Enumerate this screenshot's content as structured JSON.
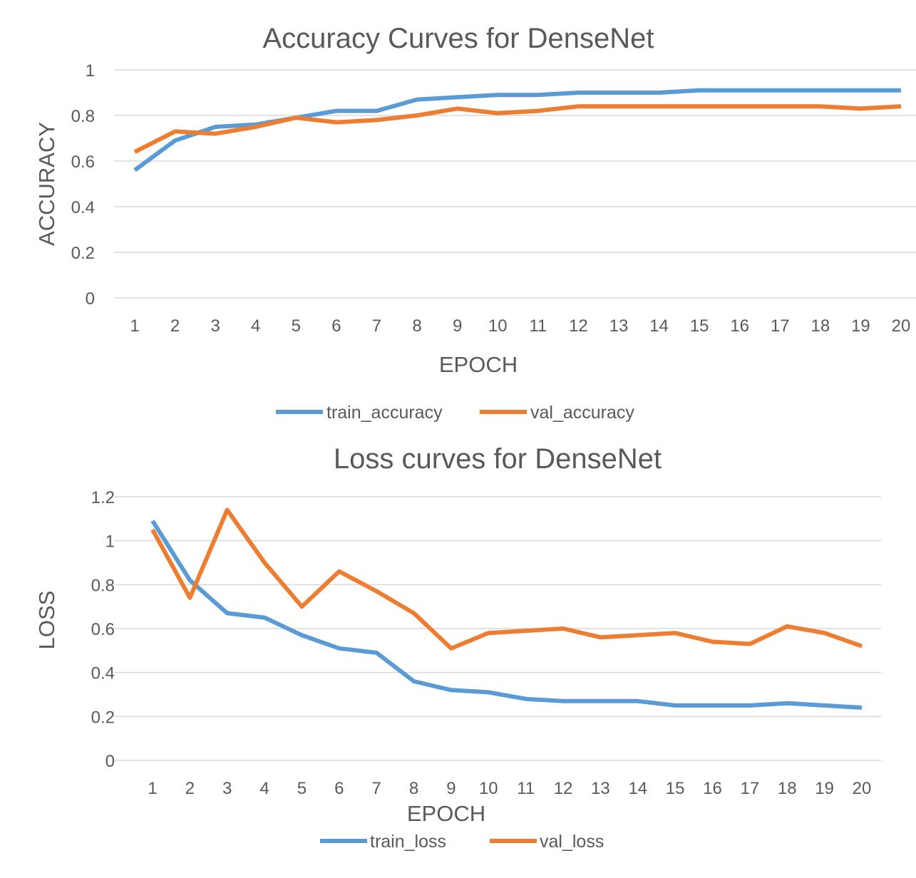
{
  "chart_data": [
    {
      "type": "line",
      "title": "Accuracy Curves for DenseNet",
      "xlabel": "EPOCH",
      "ylabel": "ACCURACY",
      "categories": [
        "1",
        "2",
        "3",
        "4",
        "5",
        "6",
        "7",
        "8",
        "9",
        "10",
        "11",
        "12",
        "13",
        "14",
        "15",
        "16",
        "17",
        "18",
        "19",
        "20"
      ],
      "ylim": [
        0,
        1
      ],
      "yticks": [
        "0",
        "0.2",
        "0.4",
        "0.6",
        "0.8",
        "1"
      ],
      "grid": true,
      "legend_position": "bottom",
      "series": [
        {
          "name": "train_accuracy",
          "color": "#5b9bd5",
          "values": [
            0.56,
            0.69,
            0.75,
            0.76,
            0.79,
            0.82,
            0.82,
            0.87,
            0.88,
            0.89,
            0.89,
            0.9,
            0.9,
            0.9,
            0.91,
            0.91,
            0.91,
            0.91,
            0.91,
            0.91
          ]
        },
        {
          "name": "val_accuracy",
          "color": "#ed7d31",
          "values": [
            0.64,
            0.73,
            0.72,
            0.75,
            0.79,
            0.77,
            0.78,
            0.8,
            0.83,
            0.81,
            0.82,
            0.84,
            0.84,
            0.84,
            0.84,
            0.84,
            0.84,
            0.84,
            0.83,
            0.84
          ]
        }
      ]
    },
    {
      "type": "line",
      "title": "Loss curves for DenseNet",
      "xlabel": "EPOCH",
      "ylabel": "LOSS",
      "categories": [
        "1",
        "2",
        "3",
        "4",
        "5",
        "6",
        "7",
        "8",
        "9",
        "10",
        "11",
        "12",
        "13",
        "14",
        "15",
        "16",
        "17",
        "18",
        "19",
        "20"
      ],
      "ylim": [
        0,
        1.2
      ],
      "yticks": [
        "0",
        "0.2",
        "0.4",
        "0.6",
        "0.8",
        "1",
        "1.2"
      ],
      "grid": true,
      "legend_position": "bottom",
      "series": [
        {
          "name": "train_loss",
          "color": "#5b9bd5",
          "values": [
            1.09,
            0.82,
            0.67,
            0.65,
            0.57,
            0.51,
            0.49,
            0.36,
            0.32,
            0.31,
            0.28,
            0.27,
            0.27,
            0.27,
            0.25,
            0.25,
            0.25,
            0.26,
            0.25,
            0.24
          ]
        },
        {
          "name": "val_loss",
          "color": "#ed7d31",
          "values": [
            1.05,
            0.74,
            1.14,
            0.9,
            0.7,
            0.86,
            0.77,
            0.67,
            0.51,
            0.58,
            0.59,
            0.6,
            0.56,
            0.57,
            0.58,
            0.54,
            0.53,
            0.61,
            0.58,
            0.52
          ]
        }
      ]
    }
  ]
}
